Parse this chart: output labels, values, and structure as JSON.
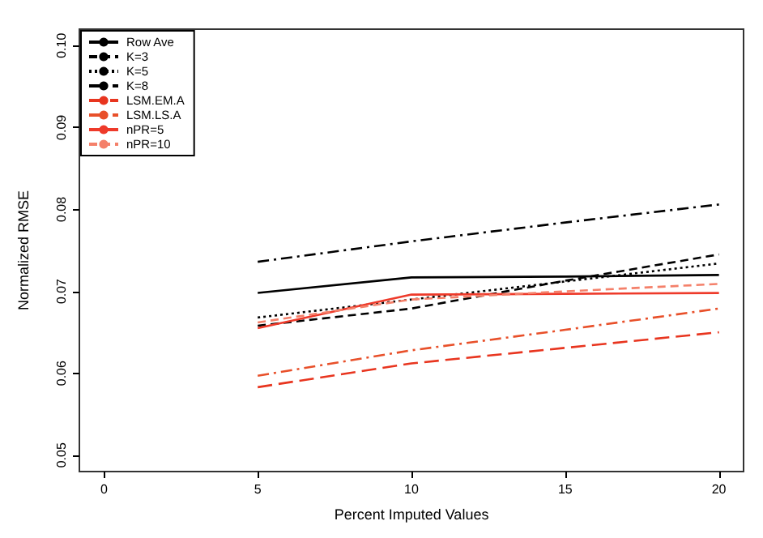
{
  "chart_data": {
    "type": "line",
    "xlabel": "Percent Imputed Values",
    "ylabel": "Normalized RMSE",
    "x": [
      5,
      10,
      15,
      20
    ],
    "series": [
      {
        "name": "Row Ave",
        "color": "#000000",
        "line_style": "solid",
        "values": [
          0.0698,
          0.0717,
          0.0718,
          0.072
        ]
      },
      {
        "name": "K=3",
        "color": "#000000",
        "line_style": "dashed",
        "values": [
          0.0658,
          0.0679,
          0.0713,
          0.0745
        ]
      },
      {
        "name": "K=5",
        "color": "#000000",
        "line_style": "dotted",
        "values": [
          0.0668,
          0.069,
          0.0712,
          0.0734
        ]
      },
      {
        "name": "K=8",
        "color": "#000000",
        "line_style": "dashdot",
        "values": [
          0.0736,
          0.0761,
          0.0784,
          0.0806
        ]
      },
      {
        "name": "LSM.EM.A",
        "color": "#e8351f",
        "line_style": "longdash",
        "values": [
          0.0583,
          0.0612,
          0.0631,
          0.065
        ]
      },
      {
        "name": "LSM.LS.A",
        "color": "#e8502a",
        "line_style": "dashdot",
        "values": [
          0.0597,
          0.0628,
          0.0653,
          0.0679
        ]
      },
      {
        "name": "nPR=5",
        "color": "#ee3a2a",
        "line_style": "solid",
        "values": [
          0.0655,
          0.0696,
          0.0697,
          0.0698
        ]
      },
      {
        "name": "nPR=10",
        "color": "#f4806a",
        "line_style": "dashed",
        "values": [
          0.0662,
          0.069,
          0.07,
          0.0709
        ]
      }
    ],
    "xlim": [
      -0.8,
      20.8
    ],
    "xticks": [
      0,
      5,
      10,
      15,
      20
    ],
    "ylim": [
      0.048,
      0.102
    ],
    "yticks": [
      0.05,
      0.06,
      0.07,
      0.08,
      0.09,
      {
        "value": 0.1,
        "label": "0.10"
      }
    ],
    "legend": "top left",
    "grid": false,
    "marker": "none"
  }
}
